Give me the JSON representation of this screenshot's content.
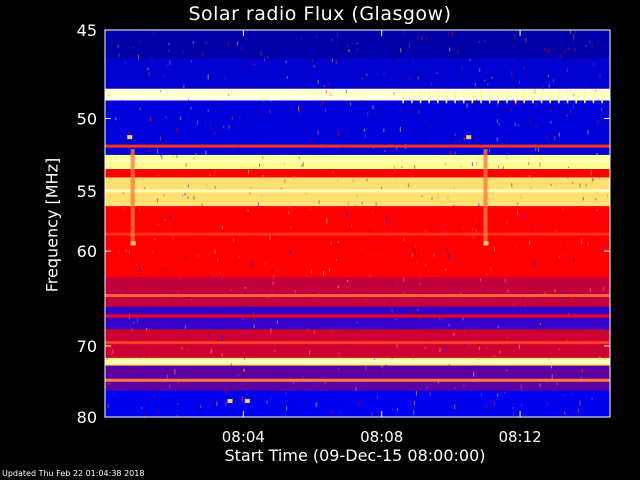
{
  "chart_data": {
    "type": "heatmap",
    "title": "Solar radio Flux (Glasgow)",
    "ylabel": "Frequency [MHz]",
    "xlabel": "Start Time (09-Dec-15 08:00:00)",
    "x_unit": "minutes after 08:00",
    "xlim": [
      0,
      14.6
    ],
    "ylim": [
      45,
      80
    ],
    "y_scale": "reciprocal",
    "y_ticks": [
      45,
      50,
      55,
      60,
      70,
      80
    ],
    "y_tick_labels": [
      "45",
      "50",
      "55",
      "60",
      "70",
      "80"
    ],
    "x_ticks": [
      4,
      8,
      12
    ],
    "x_tick_labels": [
      "08:04",
      "08:08",
      "08:12"
    ],
    "colormap": [
      "#000080",
      "#0000ff",
      "#ff0000",
      "#ffff80",
      "#ffffff"
    ],
    "bands": [
      {
        "from": 45.0,
        "to": 46.5,
        "level": 0.08
      },
      {
        "from": 46.5,
        "to": 48.2,
        "level": 0.16
      },
      {
        "from": 48.2,
        "to": 48.9,
        "level": 0.9
      },
      {
        "from": 48.9,
        "to": 52.4,
        "level": 0.18
      },
      {
        "from": 52.4,
        "to": 53.4,
        "level": 0.78
      },
      {
        "from": 53.4,
        "to": 54.0,
        "level": 0.5
      },
      {
        "from": 54.0,
        "to": 56.2,
        "level": 0.72
      },
      {
        "from": 56.2,
        "to": 62.5,
        "level": 0.5
      },
      {
        "from": 62.5,
        "to": 65.5,
        "level": 0.44
      },
      {
        "from": 65.5,
        "to": 68.0,
        "level": 0.3
      },
      {
        "from": 68.0,
        "to": 71.5,
        "level": 0.45
      },
      {
        "from": 71.5,
        "to": 72.5,
        "level": 0.74
      },
      {
        "from": 72.5,
        "to": 76.0,
        "level": 0.34
      },
      {
        "from": 76.0,
        "to": 80.0,
        "level": 0.22
      }
    ],
    "lines": [
      {
        "freq": 48.7,
        "level": 0.97
      },
      {
        "freq": 51.8,
        "level": 0.55
      },
      {
        "freq": 52.8,
        "level": 0.86
      },
      {
        "freq": 55.0,
        "level": 0.85
      },
      {
        "freq": 58.5,
        "level": 0.55
      },
      {
        "freq": 64.3,
        "level": 0.6
      },
      {
        "freq": 66.5,
        "level": 0.5
      },
      {
        "freq": 69.6,
        "level": 0.56
      },
      {
        "freq": 72.0,
        "level": 0.9
      },
      {
        "freq": 74.5,
        "level": 0.62
      }
    ],
    "events": [
      {
        "time": 0.8,
        "from": 52.0,
        "to": 59.5,
        "level": 0.62
      },
      {
        "time": 11.0,
        "from": 52.0,
        "to": 59.5,
        "level": 0.62
      }
    ],
    "spikes": [
      {
        "time": 0.8,
        "freq": 59.3
      },
      {
        "time": 11.0,
        "freq": 59.3
      },
      {
        "time": 0.7,
        "freq": 51.2
      },
      {
        "time": 10.5,
        "freq": 51.2
      },
      {
        "time": 3.6,
        "freq": 77.5
      },
      {
        "time": 4.1,
        "freq": 77.5
      }
    ]
  },
  "footer": "Updated Thu Feb 22 01:04:38 2018"
}
